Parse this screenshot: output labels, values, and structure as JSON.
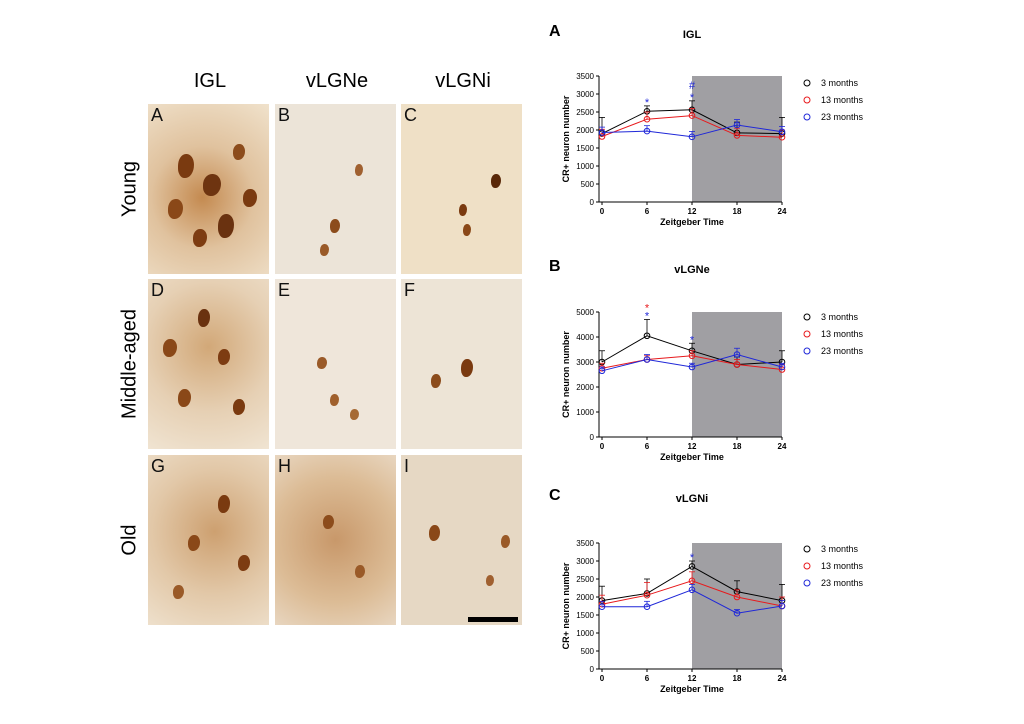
{
  "micrographs": {
    "columns": [
      "IGL",
      "vLGNe",
      "vLGNi"
    ],
    "rows": [
      "Young",
      "Middle-aged",
      "Old"
    ],
    "panel_letters": [
      "A",
      "B",
      "C",
      "D",
      "E",
      "F",
      "G",
      "H",
      "I"
    ]
  },
  "colors": {
    "m3": "#000000",
    "m13": "#e8191c",
    "m23": "#1f27d8",
    "night": "#a09fa3"
  },
  "chart_data": [
    {
      "type": "line",
      "panel_letter": "A",
      "title": "IGL",
      "xlabel": "Zeitgeber Time",
      "ylabel": "CR+ neuron number",
      "x": [
        0,
        6,
        12,
        18,
        24
      ],
      "xticks": [
        "0",
        "6",
        "12",
        "18",
        "24"
      ],
      "ylim": [
        0,
        3500
      ],
      "yticks": [
        "0",
        "500",
        "1000",
        "1500",
        "2000",
        "2500",
        "3000",
        "3500"
      ],
      "dark_phase": [
        12,
        24
      ],
      "series": [
        {
          "name": "3 months",
          "color": "#000000",
          "values": [
            1900,
            2520,
            2560,
            1920,
            1900
          ],
          "err": [
            450,
            150,
            250,
            300,
            450
          ]
        },
        {
          "name": "13 months",
          "color": "#e8191c",
          "values": [
            1820,
            2300,
            2400,
            1850,
            1800
          ],
          "err": [
            200,
            200,
            200,
            200,
            200
          ]
        },
        {
          "name": "23 months",
          "color": "#1f27d8",
          "values": [
            1930,
            1970,
            1810,
            2140,
            1950
          ],
          "err": [
            150,
            150,
            150,
            150,
            150
          ]
        }
      ],
      "annotations": [
        {
          "x": 6,
          "text": "*",
          "color": "#1f27d8",
          "level": 0
        },
        {
          "x": 12,
          "text": "*",
          "color": "#1f27d8",
          "level": 0
        },
        {
          "x": 12,
          "text": "#",
          "color": "#1f27d8",
          "level": 1
        }
      ]
    },
    {
      "type": "line",
      "panel_letter": "B",
      "title": "vLGNe",
      "xlabel": "Zeitgeber Time",
      "ylabel": "CR+ neuron number",
      "x": [
        0,
        6,
        12,
        18,
        24
      ],
      "xticks": [
        "0",
        "6",
        "12",
        "18",
        "24"
      ],
      "ylim": [
        0,
        5000
      ],
      "yticks": [
        "0",
        "1000",
        "2000",
        "3000",
        "4000",
        "5000"
      ],
      "dark_phase": [
        12,
        24
      ],
      "series": [
        {
          "name": "3 months",
          "color": "#000000",
          "values": [
            3000,
            4050,
            3450,
            2900,
            3000
          ],
          "err": [
            450,
            650,
            300,
            300,
            450
          ]
        },
        {
          "name": "13 months",
          "color": "#e8191c",
          "values": [
            2750,
            3100,
            3250,
            2900,
            2700
          ],
          "err": [
            200,
            150,
            200,
            200,
            200
          ]
        },
        {
          "name": "23 months",
          "color": "#1f27d8",
          "values": [
            2650,
            3100,
            2800,
            3300,
            2800
          ],
          "err": [
            150,
            200,
            150,
            250,
            150
          ]
        }
      ],
      "annotations": [
        {
          "x": 6,
          "text": "*",
          "color": "#1f27d8",
          "level": 0
        },
        {
          "x": 6,
          "text": "*",
          "color": "#e8191c",
          "level": 1
        },
        {
          "x": 12,
          "text": "*",
          "color": "#1f27d8",
          "level": 0
        }
      ]
    },
    {
      "type": "line",
      "panel_letter": "C",
      "title": "vLGNi",
      "xlabel": "Zeitgeber Time",
      "ylabel": "CR+ neuron number",
      "x": [
        0,
        6,
        12,
        18,
        24
      ],
      "xticks": [
        "0",
        "6",
        "12",
        "18",
        "24"
      ],
      "ylim": [
        0,
        3500
      ],
      "yticks": [
        "0",
        "500",
        "1000",
        "1500",
        "2000",
        "2500",
        "3000",
        "3500"
      ],
      "dark_phase": [
        12,
        24
      ],
      "series": [
        {
          "name": "3 months",
          "color": "#000000",
          "values": [
            1900,
            2100,
            2850,
            2150,
            1900
          ],
          "err": [
            400,
            400,
            150,
            300,
            450
          ]
        },
        {
          "name": "13 months",
          "color": "#e8191c",
          "values": [
            1800,
            2050,
            2450,
            2000,
            1750
          ],
          "err": [
            250,
            350,
            250,
            200,
            250
          ]
        },
        {
          "name": "23 months",
          "color": "#1f27d8",
          "values": [
            1730,
            1730,
            2200,
            1550,
            1750
          ],
          "err": [
            150,
            150,
            150,
            100,
            150
          ]
        }
      ],
      "annotations": [
        {
          "x": 12,
          "text": "*",
          "color": "#1f27d8",
          "level": 0
        }
      ]
    }
  ]
}
